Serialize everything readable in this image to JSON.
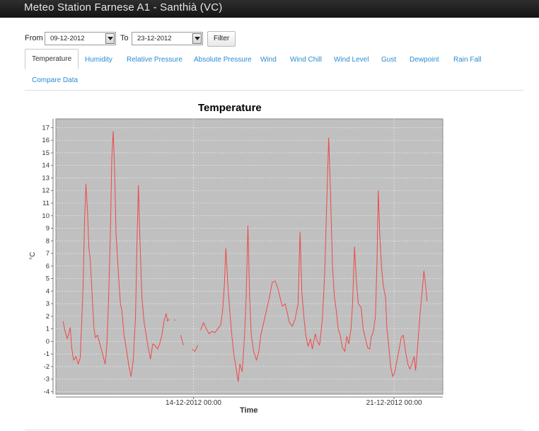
{
  "app": {
    "title": "Meteo Station Farnese A1 - Santhià (VC)"
  },
  "filter": {
    "from_label": "From",
    "from_value": "09-12-2012",
    "to_label": "To",
    "to_value": "23-12-2012",
    "button_label": "Filter"
  },
  "tabs": [
    {
      "label": "Temperature",
      "active": true
    },
    {
      "label": "Humidity"
    },
    {
      "label": "Relative Pressure"
    },
    {
      "label": "Absolute Pressure"
    },
    {
      "label": "Wind"
    },
    {
      "label": "Wind Chill"
    },
    {
      "label": "Wind Level"
    },
    {
      "label": "Gust"
    },
    {
      "label": "Dewpoint"
    },
    {
      "label": "Rain Fall"
    },
    {
      "label": "Compare Data"
    }
  ],
  "chart_data": {
    "type": "line",
    "title": "Temperature",
    "xlabel": "Time",
    "ylabel": "°C",
    "ylim": [
      -4.2,
      17.7
    ],
    "yticks": [
      -4,
      -3,
      -2,
      -1,
      0,
      1,
      2,
      3,
      4,
      5,
      6,
      7,
      8,
      9,
      10,
      11,
      12,
      13,
      14,
      15,
      16,
      17
    ],
    "xlim": [
      0,
      13.5
    ],
    "x_unit": "days since 09-12-2012 00:00",
    "xticks": [
      {
        "x": 4.8,
        "label": "14-12-2012 00:00"
      },
      {
        "x": 11.8,
        "label": "21-12-2012 00:00"
      }
    ],
    "grid": true,
    "line_color": "#f04848",
    "plot_background": "#c0c0c0",
    "series": [
      {
        "name": "Temperature",
        "points": [
          [
            0.25,
            1.6
          ],
          [
            0.32,
            0.8
          ],
          [
            0.4,
            0.2
          ],
          [
            0.5,
            1.1
          ],
          [
            0.55,
            -0.5
          ],
          [
            0.62,
            -1.5
          ],
          [
            0.7,
            -1.2
          ],
          [
            0.78,
            -1.8
          ],
          [
            0.85,
            -1.3
          ],
          [
            0.9,
            1.5
          ],
          [
            0.95,
            4.5
          ],
          [
            1.0,
            9.5
          ],
          [
            1.05,
            12.5
          ],
          [
            1.1,
            10.5
          ],
          [
            1.15,
            7.5
          ],
          [
            1.2,
            6.5
          ],
          [
            1.28,
            3.0
          ],
          [
            1.33,
            1.0
          ],
          [
            1.38,
            0.3
          ],
          [
            1.45,
            0.5
          ],
          [
            1.55,
            -0.3
          ],
          [
            1.65,
            -1.2
          ],
          [
            1.72,
            -1.8
          ],
          [
            1.78,
            -0.3
          ],
          [
            1.84,
            3.5
          ],
          [
            1.9,
            8.5
          ],
          [
            1.95,
            14.5
          ],
          [
            2.0,
            16.7
          ],
          [
            2.05,
            13.5
          ],
          [
            2.1,
            8.5
          ],
          [
            2.18,
            5.5
          ],
          [
            2.25,
            3.0
          ],
          [
            2.3,
            2.5
          ],
          [
            2.38,
            0.5
          ],
          [
            2.45,
            -0.5
          ],
          [
            2.55,
            -2.0
          ],
          [
            2.62,
            -2.8
          ],
          [
            2.7,
            -1.5
          ],
          [
            2.78,
            2.0
          ],
          [
            2.83,
            8.0
          ],
          [
            2.88,
            12.4
          ],
          [
            2.92,
            9.0
          ],
          [
            3.0,
            3.5
          ],
          [
            3.08,
            1.5
          ],
          [
            3.15,
            0.5
          ],
          [
            3.22,
            -0.5
          ],
          [
            3.3,
            -1.4
          ],
          [
            3.38,
            -0.2
          ],
          [
            3.45,
            -0.3
          ],
          [
            3.55,
            -0.6
          ],
          [
            3.62,
            -0.2
          ],
          [
            3.7,
            0.5
          ],
          [
            3.78,
            1.7
          ],
          [
            3.85,
            2.2
          ],
          [
            3.9,
            1.6
          ],
          [
            3.95,
            1.8
          ]
        ]
      },
      {
        "name": "Temperature (segment 2)",
        "points": [
          [
            4.15,
            1.7
          ]
        ]
      },
      {
        "name": "Temperature (segment 3)",
        "points": [
          [
            4.35,
            0.5
          ],
          [
            4.45,
            -0.3
          ]
        ]
      },
      {
        "name": "Temperature (segment 4)",
        "points": [
          [
            4.75,
            -0.6
          ],
          [
            4.85,
            -0.8
          ],
          [
            4.95,
            -0.3
          ]
        ]
      },
      {
        "name": "Temperature (segment 5)",
        "points": [
          [
            5.05,
            0.9
          ],
          [
            5.15,
            1.5
          ],
          [
            5.25,
            1.0
          ],
          [
            5.35,
            0.6
          ],
          [
            5.45,
            0.8
          ],
          [
            5.55,
            0.7
          ],
          [
            5.65,
            1.0
          ],
          [
            5.75,
            1.3
          ],
          [
            5.82,
            2.5
          ],
          [
            5.88,
            4.5
          ],
          [
            5.93,
            7.4
          ],
          [
            6.0,
            4.5
          ],
          [
            6.08,
            2.0
          ],
          [
            6.15,
            0.2
          ],
          [
            6.22,
            -1.2
          ],
          [
            6.3,
            -2.3
          ],
          [
            6.36,
            -3.2
          ],
          [
            6.42,
            -1.8
          ],
          [
            6.5,
            -2.4
          ],
          [
            6.58,
            0.3
          ],
          [
            6.64,
            3.5
          ],
          [
            6.7,
            9.2
          ],
          [
            6.76,
            3.5
          ],
          [
            6.82,
            0.5
          ],
          [
            6.9,
            -0.8
          ],
          [
            7.0,
            -1.5
          ],
          [
            7.08,
            -0.8
          ],
          [
            7.15,
            0.5
          ],
          [
            7.25,
            1.5
          ],
          [
            7.35,
            2.5
          ],
          [
            7.45,
            3.5
          ],
          [
            7.55,
            4.7
          ],
          [
            7.65,
            4.8
          ],
          [
            7.75,
            4.2
          ],
          [
            7.82,
            3.5
          ],
          [
            7.9,
            2.8
          ],
          [
            8.0,
            3.0
          ],
          [
            8.08,
            2.2
          ],
          [
            8.15,
            1.5
          ],
          [
            8.25,
            1.2
          ],
          [
            8.35,
            1.8
          ],
          [
            8.45,
            3.0
          ],
          [
            8.52,
            8.7
          ],
          [
            8.58,
            4.0
          ],
          [
            8.65,
            2.0
          ],
          [
            8.72,
            0.5
          ],
          [
            8.8,
            -0.4
          ],
          [
            8.88,
            0.2
          ],
          [
            8.95,
            -0.6
          ],
          [
            9.05,
            0.6
          ],
          [
            9.12,
            0.0
          ],
          [
            9.2,
            -0.3
          ],
          [
            9.3,
            1.8
          ],
          [
            9.38,
            5.5
          ],
          [
            9.45,
            11.0
          ],
          [
            9.52,
            16.2
          ],
          [
            9.58,
            12.0
          ],
          [
            9.65,
            6.0
          ],
          [
            9.72,
            3.5
          ],
          [
            9.78,
            2.5
          ],
          [
            9.85,
            1.0
          ],
          [
            9.92,
            0.5
          ],
          [
            10.0,
            -0.5
          ],
          [
            10.08,
            -0.8
          ],
          [
            10.15,
            0.4
          ],
          [
            10.22,
            -0.2
          ],
          [
            10.3,
            1.0
          ],
          [
            10.35,
            3.0
          ],
          [
            10.42,
            7.5
          ],
          [
            10.48,
            5.0
          ],
          [
            10.55,
            3.0
          ],
          [
            10.65,
            2.7
          ],
          [
            10.72,
            1.0
          ],
          [
            10.8,
            0.2
          ],
          [
            10.88,
            -0.5
          ],
          [
            10.95,
            -0.6
          ],
          [
            11.0,
            0.3
          ],
          [
            11.08,
            0.8
          ],
          [
            11.15,
            2.0
          ],
          [
            11.2,
            6.0
          ],
          [
            11.25,
            12.0
          ],
          [
            11.3,
            8.5
          ],
          [
            11.36,
            6.0
          ],
          [
            11.42,
            4.5
          ],
          [
            11.5,
            3.5
          ],
          [
            11.55,
            1.0
          ],
          [
            11.62,
            -0.5
          ],
          [
            11.68,
            -2.0
          ],
          [
            11.75,
            -2.8
          ],
          [
            11.82,
            -2.5
          ],
          [
            11.9,
            -1.5
          ],
          [
            11.98,
            -0.6
          ],
          [
            12.05,
            0.3
          ],
          [
            12.12,
            0.5
          ],
          [
            12.2,
            -0.8
          ],
          [
            12.28,
            -1.8
          ],
          [
            12.35,
            -2.2
          ],
          [
            12.42,
            -1.8
          ],
          [
            12.5,
            -1.2
          ],
          [
            12.55,
            -2.3
          ],
          [
            12.62,
            -0.5
          ],
          [
            12.7,
            2.0
          ],
          [
            12.78,
            4.0
          ],
          [
            12.84,
            5.6
          ],
          [
            12.9,
            4.5
          ],
          [
            12.95,
            3.2
          ]
        ]
      }
    ]
  }
}
